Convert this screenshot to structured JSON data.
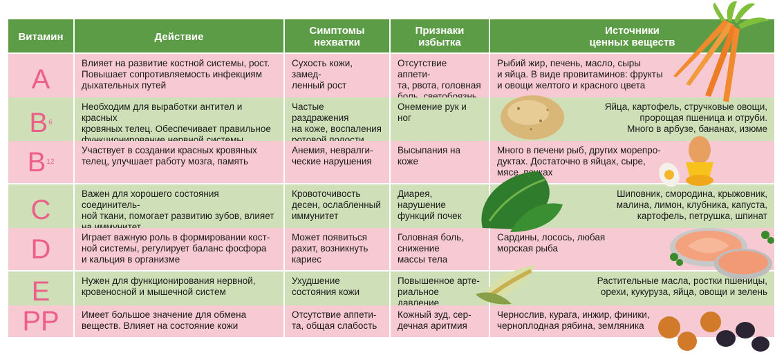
{
  "headers": {
    "vitamin": "Витамин",
    "action": "Действие",
    "deficiency": "Симптомы\nнехватки",
    "excess": "Признаки\nизбытка",
    "sources": "Источники\nценных веществ"
  },
  "rows": [
    {
      "vitamin": "A",
      "sub": "",
      "action": "Влияет на развитие костной системы, рост.\nПовышает сопротивляемость инфекциям\nдыхательных путей",
      "deficiency": "Сухость кожи, замед-\nленный рост",
      "excess": "Отсутствие аппети-\nта, рвота, головная\nболь, светобоязнь",
      "sources": "Рыбий жир, печень, масло, сыры\nи яйца. В виде провитаминов: фрукты\nи овощи желтого и красного цвета"
    },
    {
      "vitamin": "B",
      "sub": "6",
      "action": "Необходим для выработки антител и красных\nкровяных телец. Обеспечивает правильное\nфункционирование нервной системы",
      "deficiency": "Частые раздражения\nна коже, воспаления\nротовой полости",
      "excess": "Онемение рук и ног",
      "sources": "Яйца, картофель, стручковые овощи,\nпророщая пшеница  и отруби.\nМного в арбузе, бананах, изюме"
    },
    {
      "vitamin": "B",
      "sub": "12",
      "action": "Участвует в создании красных кровяных\nтелец, улучшает работу мозга, память",
      "deficiency": "Анемия, невралги-\nческие нарушения",
      "excess": "Высыпания на коже",
      "sources": "Много в печени рыб, других морепро-\nдуктах. Достаточно в яйцах, сыре,\n            мясе, почках"
    },
    {
      "vitamin": "C",
      "sub": "",
      "action": "Важен для хорошего состояния соединитель-\nной ткани, помогает развитию зубов, влияет\nна иммунитет",
      "deficiency": "Кровоточивость\nдесен, ослабленный\nиммунитет",
      "excess": "Диарея, нарушение\nфункций почек",
      "sources": "Шиповник, смородина, крыжовник,\nмалина, лимон, клубника, капуста,\nкартофель, петрушка, шпинат"
    },
    {
      "vitamin": "D",
      "sub": "",
      "action": "Играет важную роль в формировании кост-\nной системы, регулирует баланс фосфора\nи кальция в организме",
      "deficiency": "Может появиться\nрахит, возникнуть\nкариес",
      "excess": "Головная боль,\nснижение\nмассы тела",
      "sources": "Сардины, лосось, любая\nморская рыба"
    },
    {
      "vitamin": "E",
      "sub": "",
      "action": "Нужен для  функционирования нервной,\nкровеносной и мышечной систем",
      "deficiency": "Ухудшение\nсостояния кожи",
      "excess": "Повышенное арте-\nриальное давление",
      "sources": "Растительные масла, ростки пшеницы,\nорехи, кукуруза, яйца, овощи и зелень"
    },
    {
      "vitamin": "PP",
      "sub": "",
      "action": "Имеет большое значение для обмена\nвеществ. Влияет на состояние кожи",
      "deficiency": "Отсутствие аппети-\nта, общая слабость",
      "excess": "Кожный зуд, сер-\nдечная аритмия",
      "sources": "Чернослив, курага, инжир, финики,\nчерноплодная рябина, земляника"
    }
  ],
  "colors": {
    "header": "#5d9c46",
    "pink": "#f7c9d2",
    "green": "#cfe0b8",
    "vitamin_letter": "#ec5f8a"
  },
  "illustrations": [
    "carrots",
    "potato",
    "egg-cup",
    "spinach",
    "salmon",
    "corn",
    "dried-fruits"
  ]
}
